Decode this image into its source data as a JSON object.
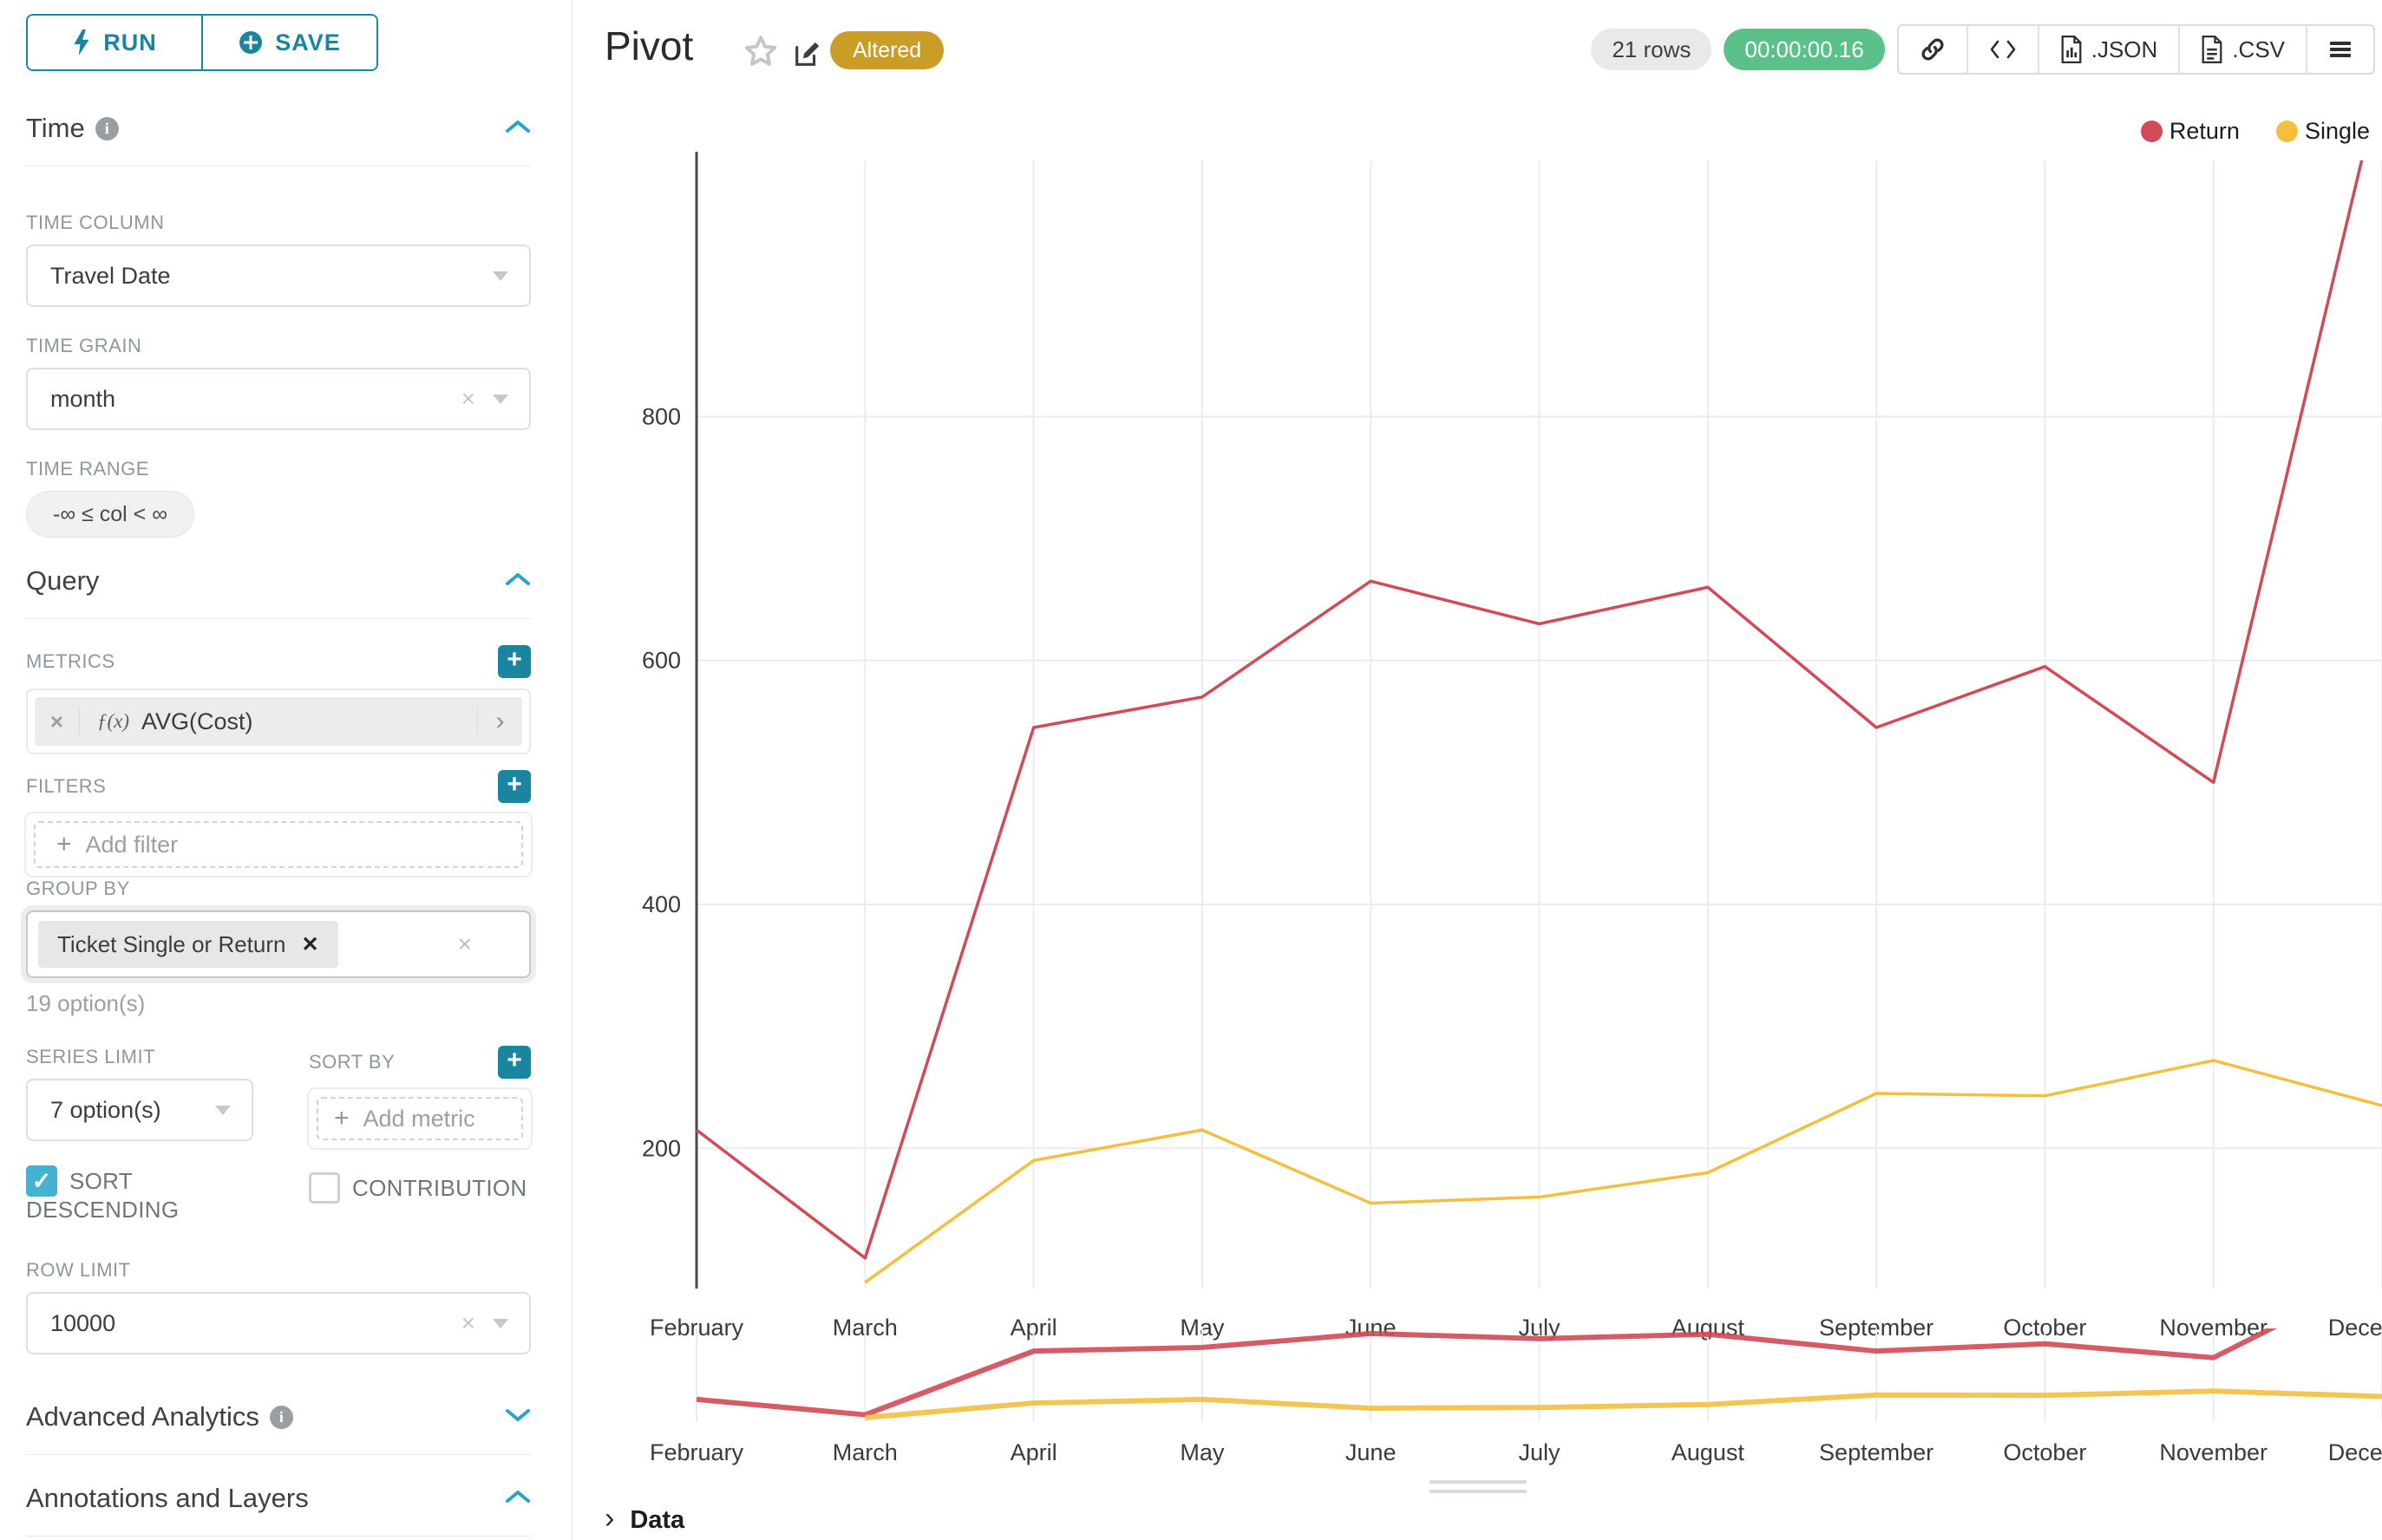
{
  "toolbar": {
    "run_label": "RUN",
    "save_label": "SAVE"
  },
  "sidebar": {
    "time": {
      "title": "Time",
      "column_label": "TIME COLUMN",
      "column_value": "Travel Date",
      "grain_label": "TIME GRAIN",
      "grain_value": "month",
      "range_label": "TIME RANGE",
      "range_value": "-∞ ≤ col < ∞"
    },
    "query": {
      "title": "Query",
      "metrics_label": "METRICS",
      "metric_fx": "ƒ(x)",
      "metric_name": "AVG(Cost)",
      "filters_label": "FILTERS",
      "add_filter_label": "Add filter",
      "group_by_label": "GROUP BY",
      "group_by_chip": "Ticket Single or Return",
      "group_by_hint": "19 option(s)",
      "series_limit_label": "SERIES LIMIT",
      "series_limit_value": "7 option(s)",
      "sort_by_label": "SORT BY",
      "add_metric_label": "Add metric",
      "sort_descending_label": "SORT DESCENDING",
      "contribution_label": "CONTRIBUTION",
      "row_limit_label": "ROW LIMIT",
      "row_limit_value": "10000"
    },
    "advanced_title": "Advanced Analytics",
    "annotations_title": "Annotations and Layers"
  },
  "header": {
    "title": "Pivot",
    "altered_badge": "Altered",
    "rows_badge": "21 rows",
    "duration_badge": "00:00:00.16",
    "json_label": ".JSON",
    "csv_label": ".CSV"
  },
  "data_panel": {
    "label": "Data"
  },
  "chart_data": {
    "type": "line",
    "title": "Pivot",
    "categories": [
      "February",
      "March",
      "April",
      "May",
      "June",
      "July",
      "August",
      "September",
      "October",
      "November",
      "December"
    ],
    "series": [
      {
        "name": "Return",
        "color": "#d04a57",
        "values": [
          215,
          110,
          545,
          570,
          665,
          630,
          660,
          545,
          595,
          500,
          1080
        ]
      },
      {
        "name": "Single",
        "color": "#f2c03e",
        "values": [
          null,
          90,
          190,
          215,
          155,
          160,
          180,
          245,
          243,
          272,
          235
        ]
      }
    ],
    "yticks": [
      200,
      400,
      600,
      800
    ],
    "ylim": [
      85,
      1010
    ],
    "mini_ylim": [
      60,
      700
    ],
    "xlabel": "",
    "ylabel": "",
    "grid": true,
    "legend_position": "top-right"
  }
}
